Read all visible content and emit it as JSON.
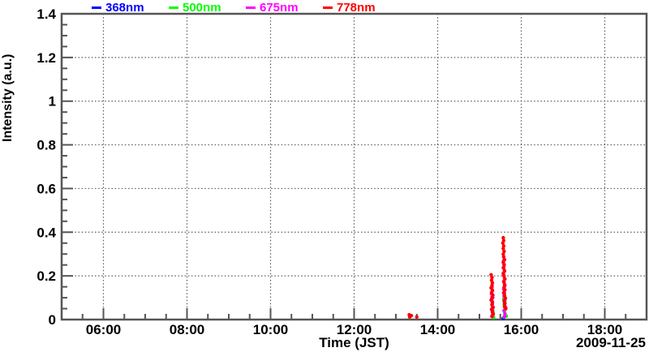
{
  "figure": {
    "date_label": "2009-11-25",
    "background_color": "#ffffff",
    "frame_color": "#565656",
    "grid_color": "#5a5a5a",
    "text_color": "#000000"
  },
  "chart_data": {
    "type": "scatter",
    "title": "",
    "xlabel": "Time (JST)",
    "ylabel": "Intensity (a.u.)",
    "legend_position": "top",
    "grid": "dotted lines at major ticks",
    "x_axis": {
      "unit": "time of day (JST), hours",
      "min_hour": 5,
      "max_hour": 19,
      "major_step_hours": 2,
      "minor_step_hours": 0.5,
      "ticks": [
        {
          "hour": 6,
          "label": "06:00"
        },
        {
          "hour": 8,
          "label": "08:00"
        },
        {
          "hour": 10,
          "label": "10:00"
        },
        {
          "hour": 12,
          "label": "12:00"
        },
        {
          "hour": 14,
          "label": "14:00"
        },
        {
          "hour": 16,
          "label": "16:00"
        },
        {
          "hour": 18,
          "label": "18:00"
        }
      ]
    },
    "y_axis": {
      "min": 0,
      "max": 1.4,
      "major_step": 0.2,
      "minor_step": 0.05,
      "ticks": [
        {
          "value": 0,
          "label": "0"
        },
        {
          "value": 0.2,
          "label": "0.2"
        },
        {
          "value": 0.4,
          "label": "0.4"
        },
        {
          "value": 0.6,
          "label": "0.6"
        },
        {
          "value": 0.8,
          "label": "0.8"
        },
        {
          "value": 1,
          "label": "1"
        },
        {
          "value": 1.2,
          "label": "1.2"
        },
        {
          "value": 1.4,
          "label": "1.4"
        }
      ]
    },
    "series": [
      {
        "name": "368nm",
        "color": "#0000ff",
        "points": [
          [
            15.57,
            0.006
          ]
        ]
      },
      {
        "name": "500nm",
        "color": "#00ff00",
        "points": [
          [
            15.31,
            0.055
          ],
          [
            15.32,
            0.043
          ],
          [
            15.33,
            0.031
          ],
          [
            15.31,
            0.02
          ],
          [
            15.34,
            0.01
          ],
          [
            15.59,
            0.118
          ],
          [
            15.6,
            0.106
          ],
          [
            15.58,
            0.094
          ],
          [
            15.61,
            0.082
          ],
          [
            15.59,
            0.07
          ],
          [
            15.6,
            0.058
          ],
          [
            15.62,
            0.047
          ],
          [
            15.6,
            0.035
          ],
          [
            15.61,
            0.023
          ],
          [
            15.59,
            0.012
          ],
          [
            15.63,
            0.052
          ],
          [
            15.64,
            0.016
          ]
        ]
      },
      {
        "name": "675nm",
        "color": "#ff00ff",
        "points": [
          [
            15.3,
            0.148
          ],
          [
            15.31,
            0.132
          ],
          [
            15.29,
            0.117
          ],
          [
            15.32,
            0.101
          ],
          [
            15.3,
            0.086
          ],
          [
            15.31,
            0.071
          ],
          [
            15.33,
            0.056
          ],
          [
            15.31,
            0.041
          ],
          [
            15.32,
            0.027
          ],
          [
            15.3,
            0.014
          ],
          [
            15.58,
            0.27
          ],
          [
            15.59,
            0.253
          ],
          [
            15.57,
            0.237
          ],
          [
            15.6,
            0.221
          ],
          [
            15.58,
            0.204
          ],
          [
            15.6,
            0.188
          ],
          [
            15.59,
            0.172
          ],
          [
            15.61,
            0.156
          ],
          [
            15.58,
            0.139
          ],
          [
            15.6,
            0.123
          ],
          [
            15.59,
            0.107
          ],
          [
            15.61,
            0.091
          ],
          [
            15.6,
            0.074
          ],
          [
            15.62,
            0.058
          ],
          [
            15.59,
            0.042
          ],
          [
            15.61,
            0.026
          ],
          [
            15.6,
            0.013
          ]
        ]
      },
      {
        "name": "778nm",
        "color": "#ff0000",
        "points": [
          [
            13.32,
            0.022
          ],
          [
            13.33,
            0.012
          ],
          [
            13.37,
            0.018
          ],
          [
            13.5,
            0.012
          ],
          [
            15.28,
            0.205
          ],
          [
            15.3,
            0.193
          ],
          [
            15.29,
            0.18
          ],
          [
            15.31,
            0.168
          ],
          [
            15.3,
            0.156
          ],
          [
            15.28,
            0.145
          ],
          [
            15.31,
            0.134
          ],
          [
            15.29,
            0.123
          ],
          [
            15.32,
            0.112
          ],
          [
            15.3,
            0.101
          ],
          [
            15.28,
            0.09
          ],
          [
            15.31,
            0.079
          ],
          [
            15.3,
            0.068
          ],
          [
            15.32,
            0.057
          ],
          [
            15.29,
            0.046
          ],
          [
            15.31,
            0.035
          ],
          [
            15.33,
            0.025
          ],
          [
            15.3,
            0.015
          ],
          [
            15.57,
            0.375
          ],
          [
            15.58,
            0.362
          ],
          [
            15.56,
            0.35
          ],
          [
            15.58,
            0.337
          ],
          [
            15.57,
            0.325
          ],
          [
            15.59,
            0.312
          ],
          [
            15.57,
            0.299
          ],
          [
            15.58,
            0.287
          ],
          [
            15.6,
            0.274
          ],
          [
            15.57,
            0.262
          ],
          [
            15.59,
            0.249
          ],
          [
            15.58,
            0.237
          ],
          [
            15.6,
            0.224
          ],
          [
            15.57,
            0.211
          ],
          [
            15.59,
            0.199
          ],
          [
            15.61,
            0.186
          ],
          [
            15.58,
            0.174
          ],
          [
            15.6,
            0.161
          ],
          [
            15.59,
            0.148
          ],
          [
            15.61,
            0.136
          ],
          [
            15.58,
            0.123
          ],
          [
            15.6,
            0.111
          ],
          [
            15.62,
            0.098
          ],
          [
            15.59,
            0.085
          ],
          [
            15.61,
            0.073
          ],
          [
            15.6,
            0.06
          ],
          [
            15.63,
            0.051
          ]
        ]
      }
    ]
  }
}
